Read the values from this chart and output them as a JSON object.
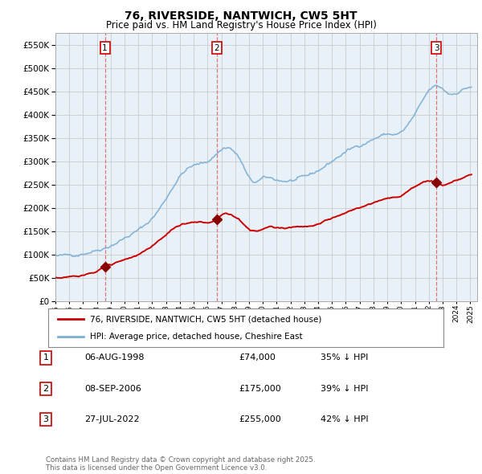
{
  "title": "76, RIVERSIDE, NANTWICH, CW5 5HT",
  "subtitle": "Price paid vs. HM Land Registry's House Price Index (HPI)",
  "ylim": [
    0,
    575000
  ],
  "yticks": [
    0,
    50000,
    100000,
    150000,
    200000,
    250000,
    300000,
    350000,
    400000,
    450000,
    500000,
    550000
  ],
  "xlim_start": 1995.0,
  "xlim_end": 2025.5,
  "background_color": "#ffffff",
  "chart_bg_color": "#e8f0f8",
  "grid_color": "#cccccc",
  "sale_dates": [
    1998.58,
    2006.67,
    2022.55
  ],
  "sale_prices": [
    74000,
    175000,
    255000
  ],
  "sale_labels": [
    "1",
    "2",
    "3"
  ],
  "sale_label_dates": [
    "06-AUG-1998",
    "08-SEP-2006",
    "27-JUL-2022"
  ],
  "sale_label_prices": [
    "£74,000",
    "£175,000",
    "£255,000"
  ],
  "sale_label_pct": [
    "35% ↓ HPI",
    "39% ↓ HPI",
    "42% ↓ HPI"
  ],
  "line_property_color": "#cc0000",
  "line_hpi_color": "#7bafd4",
  "vline_color": "#e06060",
  "legend_property_label": "76, RIVERSIDE, NANTWICH, CW5 5HT (detached house)",
  "legend_hpi_label": "HPI: Average price, detached house, Cheshire East",
  "footer": "Contains HM Land Registry data © Crown copyright and database right 2025.\nThis data is licensed under the Open Government Licence v3.0."
}
